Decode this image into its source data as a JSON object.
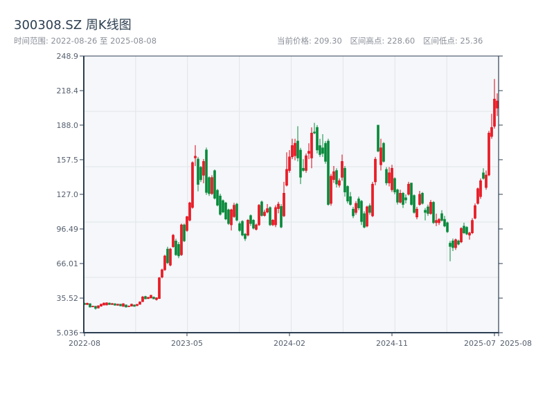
{
  "header": {
    "title": "300308.SZ 周K线图",
    "range_text": "时间范围: 2022-08-26 至 2025-08-08",
    "current_price": "当前价格: 209.30",
    "range_high": "区间高点: 228.60",
    "range_low": "区间低点: 25.36"
  },
  "colors": {
    "up": "#d90012",
    "up_fill": "#ee1c25",
    "down": "#07893a",
    "axis": "#2c3e50",
    "grid": "#e1e4e8",
    "plot_bg": "#f5f7fa"
  },
  "chart_data": {
    "type": "candlestick",
    "title": "300308.SZ 周K线图",
    "xlabel": "",
    "ylabel": "",
    "ylim": [
      5.036,
      248.9
    ],
    "yticks": [
      "248.9",
      "218.4",
      "188.0",
      "157.5",
      "127.0",
      "96.49",
      "66.01",
      "35.52",
      "5.036"
    ],
    "ytick_values": [
      248.9,
      218.4,
      188.0,
      157.5,
      127.0,
      96.49,
      66.01,
      35.52,
      5.036
    ],
    "xticks": [
      {
        "label": "2022-08",
        "index": 0
      },
      {
        "label": "2023-05",
        "index": 37
      },
      {
        "label": "2024-02",
        "index": 74
      },
      {
        "label": "2024-11",
        "index": 111
      },
      {
        "label": "2025-07",
        "index": 148
      },
      {
        "label": "2025-08",
        "index": 150
      }
    ],
    "ohlc_fields": [
      "open",
      "high",
      "low",
      "close"
    ],
    "ohlc": [
      [
        31.0,
        31.5,
        29.5,
        29.8
      ],
      [
        29.8,
        31.5,
        29.5,
        31.0
      ],
      [
        30.6,
        31.0,
        27.2,
        27.6
      ],
      [
        27.8,
        28.8,
        27.5,
        28.4
      ],
      [
        28.4,
        28.6,
        25.36,
        26.4
      ],
      [
        26.8,
        29.2,
        26.4,
        28.8
      ],
      [
        28.4,
        30.6,
        28.0,
        30.2
      ],
      [
        29.4,
        31.6,
        29.0,
        31.2
      ],
      [
        29.4,
        31.8,
        29.2,
        31.4
      ],
      [
        31.2,
        31.6,
        29.6,
        29.8
      ],
      [
        29.8,
        31.2,
        29.6,
        30.8
      ],
      [
        30.6,
        31.0,
        29.0,
        29.2
      ],
      [
        29.2,
        30.6,
        28.8,
        30.2
      ],
      [
        30.2,
        30.4,
        28.4,
        28.6
      ],
      [
        28.2,
        31.0,
        28.0,
        30.6
      ],
      [
        29.6,
        29.8,
        27.2,
        27.6
      ],
      [
        28.0,
        29.0,
        27.6,
        28.6
      ],
      [
        28.4,
        30.6,
        28.2,
        30.2
      ],
      [
        29.6,
        29.8,
        28.0,
        28.2
      ],
      [
        28.8,
        30.4,
        28.6,
        30.0
      ],
      [
        30.0,
        32.6,
        29.8,
        32.2
      ],
      [
        32.4,
        37.4,
        32.0,
        36.6
      ],
      [
        37.0,
        37.6,
        34.6,
        34.8
      ],
      [
        35.0,
        36.6,
        34.8,
        36.2
      ],
      [
        35.6,
        38.4,
        35.2,
        38.0
      ],
      [
        36.4,
        37.0,
        34.6,
        34.8
      ],
      [
        34.2,
        36.2,
        33.4,
        35.8
      ],
      [
        35.1,
        54.0,
        34.8,
        53.4
      ],
      [
        54.0,
        61.5,
        53.0,
        60.5
      ],
      [
        60.5,
        73.7,
        59.5,
        72.7
      ],
      [
        78.8,
        80.8,
        65.6,
        66.6
      ],
      [
        64.6,
        79.8,
        63.6,
        78.8
      ],
      [
        80.8,
        92.0,
        79.8,
        91.0
      ],
      [
        85.9,
        87.9,
        72.7,
        73.7
      ],
      [
        82.9,
        84.9,
        70.7,
        72.7
      ],
      [
        73.7,
        101.2,
        72.7,
        100.1
      ],
      [
        100.1,
        101.2,
        84.9,
        85.9
      ],
      [
        95.1,
        108.0,
        94.0,
        107.3
      ],
      [
        104.2,
        120.4,
        103.2,
        119.5
      ],
      [
        115.4,
        156.0,
        114.4,
        155.0
      ],
      [
        159.1,
        170.3,
        152.0,
        160.6
      ],
      [
        158.1,
        160.0,
        129.6,
        135.7
      ],
      [
        150.9,
        152.0,
        137.8,
        139.8
      ],
      [
        143.8,
        158.1,
        136.7,
        156.0
      ],
      [
        166.2,
        168.2,
        126.5,
        128.6
      ],
      [
        141.8,
        142.8,
        125.6,
        127.6
      ],
      [
        127.6,
        143.8,
        126.5,
        141.8
      ],
      [
        147.9,
        148.9,
        122.5,
        123.5
      ],
      [
        130.6,
        131.7,
        116.4,
        117.4
      ],
      [
        125.6,
        127.6,
        108.3,
        109.3
      ],
      [
        121.5,
        122.5,
        110.3,
        111.3
      ],
      [
        119.5,
        120.4,
        104.2,
        105.2
      ],
      [
        113.4,
        114.4,
        100.1,
        101.2
      ],
      [
        100.1,
        114.4,
        95.1,
        113.4
      ],
      [
        107.3,
        119.5,
        106.3,
        117.4
      ],
      [
        118.4,
        119.5,
        103.2,
        104.2
      ],
      [
        101.2,
        103.0,
        94.0,
        95.1
      ],
      [
        103.2,
        104.2,
        90.0,
        91.0
      ],
      [
        92.0,
        93.0,
        85.9,
        87.9
      ],
      [
        91.0,
        105.2,
        90.0,
        104.2
      ],
      [
        108.3,
        109.3,
        99.1,
        101.2
      ],
      [
        104.2,
        105.2,
        96.1,
        97.1
      ],
      [
        96.1,
        101.2,
        95.1,
        100.1
      ],
      [
        100.1,
        118.4,
        99.1,
        117.4
      ],
      [
        120.4,
        121.5,
        107.3,
        108.3
      ],
      [
        108.3,
        113.4,
        107.3,
        111.3
      ],
      [
        111.3,
        118.4,
        110.3,
        114.4
      ],
      [
        115.4,
        116.4,
        99.1,
        100.1
      ],
      [
        100.1,
        105.2,
        99.1,
        104.2
      ],
      [
        100.1,
        117.4,
        98.1,
        115.4
      ],
      [
        114.4,
        120.4,
        110.3,
        118.4
      ],
      [
        116.4,
        118.4,
        97.1,
        98.1
      ],
      [
        108.0,
        138.0,
        107.0,
        128.0
      ],
      [
        135.0,
        164.0,
        134.0,
        149.0
      ],
      [
        148.0,
        166.0,
        146.0,
        160.0
      ],
      [
        160.0,
        176.0,
        158.0,
        170.0
      ],
      [
        161.0,
        176.0,
        157.0,
        172.0
      ],
      [
        174.0,
        187.0,
        156.0,
        159.0
      ],
      [
        166.0,
        168.0,
        136.0,
        142.0
      ],
      [
        150.0,
        158.0,
        147.0,
        148.0
      ],
      [
        148.0,
        163.0,
        146.0,
        161.0
      ],
      [
        163.0,
        172.0,
        158.0,
        165.0
      ],
      [
        159.0,
        186.0,
        150.0,
        181.0
      ],
      [
        182.0,
        190.0,
        180.0,
        181.0
      ],
      [
        186.0,
        188.0,
        163.0,
        166.0
      ],
      [
        170.0,
        176.0,
        160.0,
        162.0
      ],
      [
        168.0,
        180.0,
        160.0,
        163.0
      ],
      [
        172.0,
        174.0,
        154.0,
        156.0
      ],
      [
        174.0,
        176.0,
        117.0,
        118.0
      ],
      [
        119.0,
        145.0,
        117.0,
        143.0
      ],
      [
        140.0,
        152.0,
        137.0,
        147.0
      ],
      [
        148.0,
        150.0,
        133.0,
        136.0
      ],
      [
        135.0,
        141.0,
        133.0,
        139.0
      ],
      [
        142.0,
        162.0,
        139.0,
        156.0
      ],
      [
        150.0,
        152.0,
        125.0,
        129.0
      ],
      [
        134.0,
        135.0,
        119.0,
        121.0
      ],
      [
        125.0,
        129.0,
        117.0,
        118.0
      ],
      [
        114.0,
        116.0,
        106.0,
        108.0
      ],
      [
        111.0,
        121.0,
        109.0,
        119.0
      ],
      [
        123.0,
        125.0,
        113.0,
        115.0
      ],
      [
        121.0,
        122.0,
        100.0,
        103.0
      ],
      [
        110.0,
        112.0,
        97.0,
        98.0
      ],
      [
        99.0,
        117.0,
        98.0,
        116.0
      ],
      [
        117.0,
        119.0,
        109.0,
        111.0
      ],
      [
        108.0,
        138.0,
        107.0,
        136.0
      ],
      [
        138.0,
        160.0,
        135.0,
        158.0
      ],
      [
        188.0,
        188.0,
        164.0,
        165.0
      ],
      [
        153.0,
        176.0,
        148.0,
        168.0
      ],
      [
        172.0,
        173.0,
        155.0,
        156.0
      ],
      [
        149.0,
        151.0,
        135.0,
        137.0
      ],
      [
        137.0,
        151.0,
        134.0,
        146.0
      ],
      [
        131.0,
        153.0,
        129.0,
        150.0
      ],
      [
        141.0,
        142.0,
        127.0,
        129.0
      ],
      [
        131.0,
        132.0,
        118.0,
        120.0
      ],
      [
        120.0,
        131.0,
        119.0,
        128.0
      ],
      [
        128.0,
        129.0,
        115.0,
        118.0
      ],
      [
        124.0,
        127.0,
        119.0,
        122.0
      ],
      [
        127.0,
        138.0,
        126.0,
        136.0
      ],
      [
        137.0,
        137.0,
        117.0,
        118.0
      ],
      [
        126.0,
        127.0,
        110.0,
        111.0
      ],
      [
        107.0,
        116.0,
        105.0,
        114.0
      ],
      [
        118.0,
        130.0,
        117.0,
        127.0
      ],
      [
        128.0,
        129.0,
        118.0,
        119.0
      ],
      [
        113.0,
        115.0,
        104.0,
        111.0
      ],
      [
        116.0,
        118.0,
        108.0,
        110.0
      ],
      [
        110.0,
        122.0,
        109.0,
        120.0
      ],
      [
        120.0,
        121.0,
        101.0,
        102.0
      ],
      [
        102.0,
        110.0,
        99.0,
        104.0
      ],
      [
        102.0,
        106.0,
        100.0,
        105.0
      ],
      [
        110.0,
        113.0,
        103.0,
        104.0
      ],
      [
        105.0,
        108.0,
        98.0,
        99.0
      ],
      [
        102.0,
        103.0,
        93.0,
        94.0
      ],
      [
        84.0,
        86.0,
        68.0,
        81.0
      ],
      [
        86.0,
        88.0,
        77.0,
        80.0
      ],
      [
        80.0,
        88.0,
        78.0,
        87.0
      ],
      [
        86.0,
        87.0,
        82.0,
        83.0
      ],
      [
        85.0,
        98.0,
        84.0,
        97.0
      ],
      [
        99.0,
        102.0,
        92.0,
        93.0
      ],
      [
        98.0,
        99.0,
        91.0,
        92.0
      ],
      [
        91.0,
        94.0,
        87.0,
        93.0
      ],
      [
        93.0,
        106.0,
        92.0,
        104.0
      ],
      [
        106.0,
        119.0,
        105.0,
        117.0
      ],
      [
        119.0,
        133.0,
        118.0,
        132.0
      ],
      [
        125.0,
        141.0,
        123.0,
        139.0
      ],
      [
        146.0,
        150.0,
        140.0,
        141.0
      ],
      [
        133.0,
        148.0,
        131.0,
        144.0
      ],
      [
        144.0,
        183.0,
        143.0,
        181.0
      ],
      [
        178.0,
        198.0,
        176.0,
        186.0
      ],
      [
        187.0,
        228.6,
        185.0,
        211.0
      ],
      [
        203.0,
        216.0,
        196.0,
        209.3
      ]
    ]
  }
}
